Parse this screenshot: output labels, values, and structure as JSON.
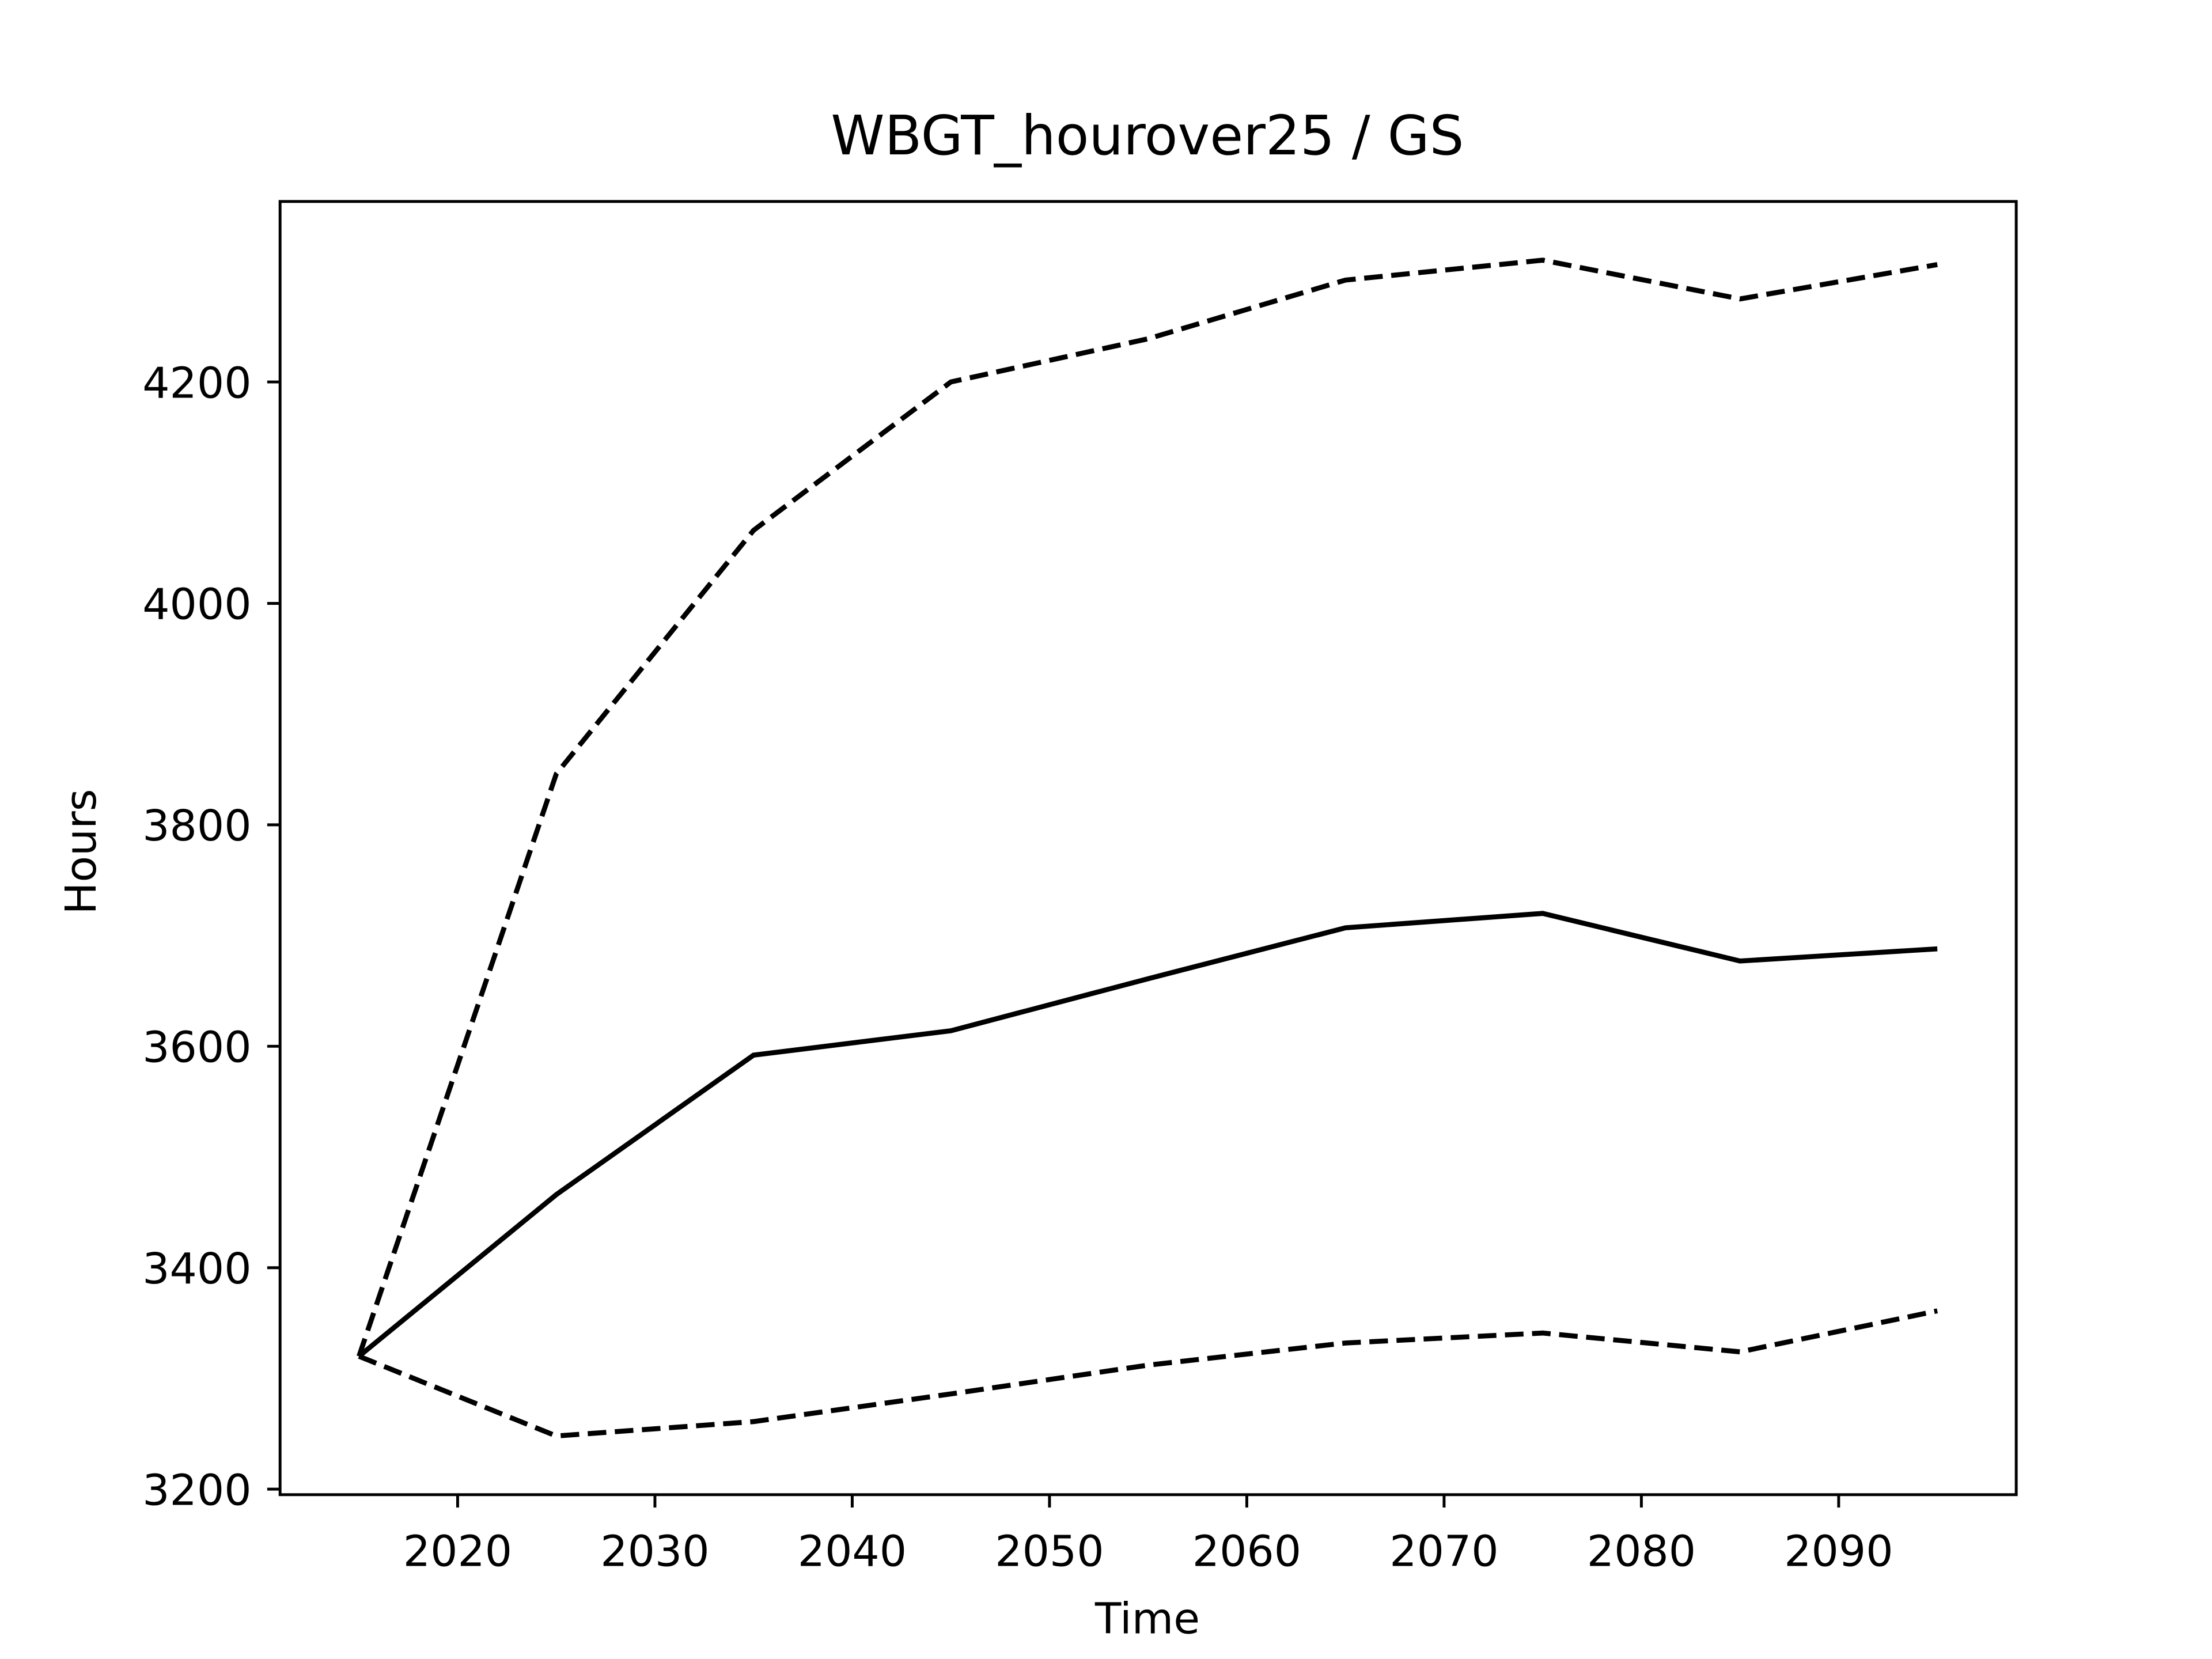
{
  "chart_data": {
    "type": "line",
    "title": "WBGT_hourover25 / GS",
    "x_label": "Time",
    "y_label": "Hours",
    "x": [
      2015,
      2025,
      2035,
      2045,
      2055,
      2065,
      2075,
      2085,
      2095
    ],
    "series": [
      {
        "color": "#000000",
        "dash": "solid",
        "values": [
          3320,
          3466,
          3592,
          3614,
          3661,
          3707,
          3720,
          3677,
          3688
        ]
      },
      {
        "color": "#000000",
        "dash": "dashed",
        "values": [
          3320,
          3846,
          4066,
          4200,
          4239,
          4292,
          4310,
          4275,
          4306
        ]
      },
      {
        "color": "#000000",
        "dash": "dashed",
        "values": [
          3320,
          3248,
          3261,
          3286,
          3312,
          3332,
          3341,
          3324,
          3361
        ]
      }
    ],
    "xlim": [
      2011,
      2099
    ],
    "xticks": [
      2020,
      2030,
      2040,
      2050,
      2060,
      2070,
      2080,
      2090
    ],
    "ylim": [
      3195,
      4363
    ],
    "yticks": [
      3200,
      3400,
      3600,
      3800,
      4000,
      4200
    ],
    "grid": false
  }
}
